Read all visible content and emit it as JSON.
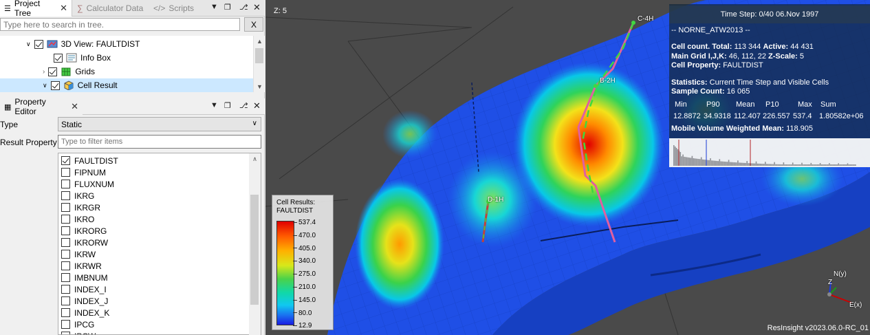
{
  "project_tree": {
    "tabs": [
      {
        "label": "Project Tree",
        "active": true
      },
      {
        "label": "Calculator Data",
        "active": false
      },
      {
        "label": "Scripts",
        "active": false
      }
    ],
    "search_placeholder": "Type here to search in tree.",
    "clear_button": "X",
    "items": [
      {
        "label": "3D View: FAULTDIST",
        "checked": true,
        "expanded": true,
        "icon": "3d-view-icon"
      },
      {
        "label": "Info Box",
        "checked": true,
        "icon": "info-box-icon"
      },
      {
        "label": "Grids",
        "checked": true,
        "expanded": false,
        "icon": "grids-icon"
      },
      {
        "label": "Cell Result",
        "checked": true,
        "expanded": true,
        "icon": "cell-result-icon",
        "selected": true
      }
    ]
  },
  "property_editor": {
    "title": "Property Editor",
    "type_label": "Type",
    "type_value": "Static",
    "result_property_label": "Result Property",
    "filter_placeholder": "Type to filter items",
    "properties": [
      {
        "label": "FAULTDIST",
        "checked": true
      },
      {
        "label": "FIPNUM",
        "checked": false
      },
      {
        "label": "FLUXNUM",
        "checked": false
      },
      {
        "label": "IKRG",
        "checked": false
      },
      {
        "label": "IKRGR",
        "checked": false
      },
      {
        "label": "IKRO",
        "checked": false
      },
      {
        "label": "IKRORG",
        "checked": false
      },
      {
        "label": "IKRORW",
        "checked": false
      },
      {
        "label": "IKRW",
        "checked": false
      },
      {
        "label": "IKRWR",
        "checked": false
      },
      {
        "label": "IMBNUM",
        "checked": false
      },
      {
        "label": "INDEX_I",
        "checked": false
      },
      {
        "label": "INDEX_J",
        "checked": false
      },
      {
        "label": "INDEX_K",
        "checked": false
      },
      {
        "label": "IPCG",
        "checked": false
      },
      {
        "label": "IPCW",
        "checked": false
      }
    ]
  },
  "view3d": {
    "z_scale": "Z: 5",
    "time_step": "Time Step: 0/40 06.Nov 1997",
    "case_name": "-- NORNE_ATW2013 --",
    "cell_count_label": "Cell count. Total:",
    "cell_count_total": "113 344",
    "active_label": "Active:",
    "active_value": "44 431",
    "main_grid_label": "Main Grid I,J,K:",
    "main_grid_value": "46, 112, 22",
    "z_scale_label": "Z-Scale:",
    "z_scale_value": "5",
    "cell_property_label": "Cell Property:",
    "cell_property_value": "FAULTDIST",
    "statistics_label": "Statistics:",
    "statistics_value": "Current Time Step and Visible Cells",
    "sample_count_label": "Sample Count:",
    "sample_count_value": "16 065",
    "stat_headers": [
      "Min",
      "P90",
      "Mean",
      "P10",
      "Max",
      "Sum"
    ],
    "stat_values": [
      "12.8872",
      "34.9318",
      "112.407",
      "226.557",
      "537.4",
      "1.80582e+06"
    ],
    "mobile_volume_label": "Mobile Volume Weighted Mean:",
    "mobile_volume_value": "118.905",
    "legend_title_1": "Cell Results:",
    "legend_title_2": "FAULTDIST",
    "legend_ticks": [
      "537.4",
      "470.0",
      "405.0",
      "340.0",
      "275.0",
      "210.0",
      "145.0",
      "80.0",
      "12.9"
    ],
    "wells": [
      "C-4H",
      "B-2H",
      "D-1H"
    ],
    "axis_n": "N(y)",
    "axis_z": "Z",
    "axis_e": "E(x)",
    "version": "ResInsight v2023.06.0-RC_01"
  }
}
